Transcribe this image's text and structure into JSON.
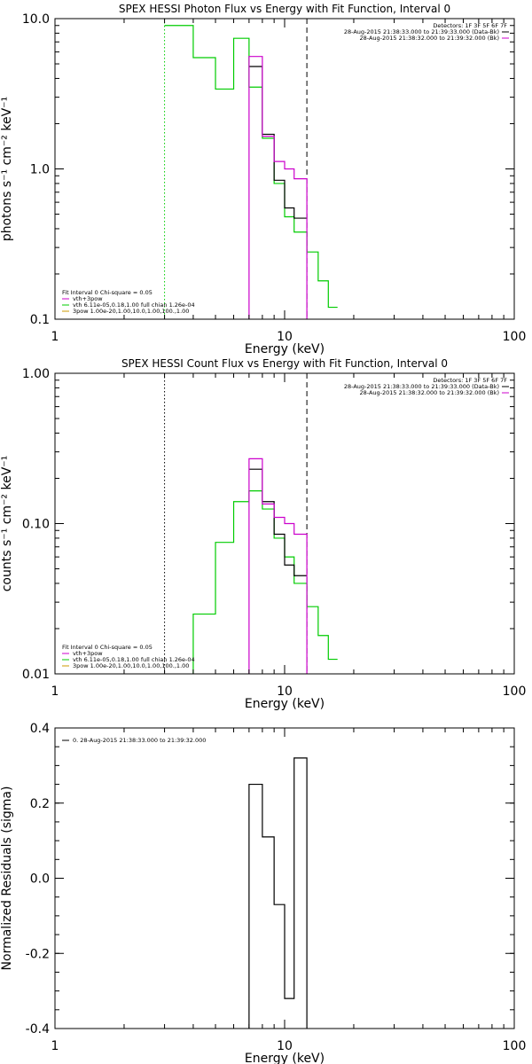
{
  "chart_data": [
    {
      "type": "line",
      "title": "SPEX HESSI Photon Flux vs Energy with Fit Function, Interval 0",
      "xlabel": "Energy (keV)",
      "ylabel": "photons s⁻¹ cm⁻² keV⁻¹",
      "xscale": "log",
      "yscale": "log",
      "xlim": [
        1,
        100
      ],
      "ylim": [
        0.1,
        10
      ],
      "xticks": [
        {
          "v": 1,
          "label": "1"
        },
        {
          "v": 10,
          "label": "10"
        },
        {
          "v": 100,
          "label": "100"
        }
      ],
      "yticks": [
        {
          "v": 0.1,
          "label": "0.1"
        },
        {
          "v": 1,
          "label": "1.0"
        },
        {
          "v": 10,
          "label": "10.0"
        }
      ],
      "header": [
        {
          "text": "Detectors: 1F 3F 5F 6F 7F",
          "color": "#000000"
        },
        {
          "text": "28-Aug-2015 21:38:33.000 to 21:39:33.000 (Data-Bk)",
          "color": "#000000"
        },
        {
          "text": "28-Aug-2015 21:38:32.000 to 21:39:32.000 (Bk)",
          "color": "#cc00cc"
        }
      ],
      "legend": [
        {
          "text": "Fit Interval 0   Chi-square = 0.05",
          "color": "#000000",
          "line": false
        },
        {
          "text": "vth+3pow",
          "color": "#cc00cc",
          "line": true
        },
        {
          "text": "vth 6.11e-05,0.18,1.00  full chian 1.26e-04",
          "color": "#00cc00",
          "line": true
        },
        {
          "text": "3pow 1.00e-20,1.00,10.0,1.00,100.,1.00",
          "color": "#cc9900",
          "line": true
        }
      ],
      "vlines": [
        {
          "x": 3.0,
          "style": "dotted",
          "color": "#00cc00"
        },
        {
          "x": 12.5,
          "style": "dashed",
          "color": "#000000"
        }
      ],
      "series": [
        {
          "color": "#00cc00",
          "edges": [
            3.0,
            4.0,
            5.0,
            6.0,
            7.0,
            8.0,
            9.0,
            10.0,
            11.0,
            12.5,
            14.0,
            15.5,
            17.0
          ],
          "values": [
            9.0,
            5.5,
            3.4,
            7.4,
            3.5,
            1.6,
            0.8,
            0.48,
            0.38,
            0.28,
            0.18,
            0.12
          ]
        },
        {
          "color": "#000000",
          "edges": [
            7.0,
            8.0,
            9.0,
            10.0,
            11.0,
            12.5
          ],
          "values": [
            4.8,
            1.7,
            0.84,
            0.55,
            0.47
          ]
        },
        {
          "color": "#cc00cc",
          "edges": [
            7.0,
            8.0,
            9.0,
            10.0,
            11.0,
            12.5
          ],
          "values": [
            5.6,
            1.65,
            1.12,
            1.0,
            0.86
          ],
          "drop_left": true,
          "drop_right": true
        }
      ]
    },
    {
      "type": "line",
      "title": "SPEX HESSI Count Flux vs Energy with Fit Function, Interval 0",
      "xlabel": "Energy (keV)",
      "ylabel": "counts s⁻¹ cm⁻² keV⁻¹",
      "xscale": "log",
      "yscale": "log",
      "xlim": [
        1,
        100
      ],
      "ylim": [
        0.01,
        1
      ],
      "xticks": [
        {
          "v": 1,
          "label": "1"
        },
        {
          "v": 10,
          "label": "10"
        },
        {
          "v": 100,
          "label": "100"
        }
      ],
      "yticks": [
        {
          "v": 0.01,
          "label": "0.01"
        },
        {
          "v": 0.1,
          "label": "0.10"
        },
        {
          "v": 1,
          "label": "1.00"
        }
      ],
      "header": [
        {
          "text": "Detectors: 1F 3F 5F 6F 7F",
          "color": "#000000"
        },
        {
          "text": "28-Aug-2015 21:38:33.000 to 21:39:33.000 (Data-Bk)",
          "color": "#000000"
        },
        {
          "text": "28-Aug-2015 21:38:32.000 to 21:39:32.000 (Bk)",
          "color": "#cc00cc"
        }
      ],
      "legend": [
        {
          "text": "Fit Interval 0   Chi-square = 0.05",
          "color": "#000000",
          "line": false
        },
        {
          "text": "vth+3pow",
          "color": "#cc00cc",
          "line": true
        },
        {
          "text": "vth 6.11e-05,0.18,1.00  full chian 1.26e-04",
          "color": "#00cc00",
          "line": true
        },
        {
          "text": "3pow 1.00e-20,1.00,10.0,1.00,100.,1.00",
          "color": "#cc9900",
          "line": true
        }
      ],
      "vlines": [
        {
          "x": 3.0,
          "style": "dotted",
          "color": "#000000"
        },
        {
          "x": 12.5,
          "style": "dashed",
          "color": "#000000"
        }
      ],
      "series": [
        {
          "color": "#00cc00",
          "edges": [
            4.0,
            5.0,
            6.0,
            7.0,
            8.0,
            9.0,
            10.0,
            11.0,
            12.5,
            14.0,
            15.5,
            17.0
          ],
          "values": [
            0.025,
            0.075,
            0.14,
            0.165,
            0.125,
            0.08,
            0.06,
            0.04,
            0.028,
            0.018,
            0.0125
          ],
          "drop_left": true
        },
        {
          "color": "#000000",
          "edges": [
            7.0,
            8.0,
            9.0,
            10.0,
            11.0,
            12.5
          ],
          "values": [
            0.23,
            0.14,
            0.085,
            0.053,
            0.045
          ]
        },
        {
          "color": "#cc00cc",
          "edges": [
            7.0,
            8.0,
            9.0,
            10.0,
            11.0,
            12.5
          ],
          "values": [
            0.27,
            0.135,
            0.11,
            0.1,
            0.085
          ],
          "drop_left": true,
          "drop_right": true
        }
      ]
    },
    {
      "type": "line",
      "title": "",
      "xlabel": "Energy (keV)",
      "ylabel": "Normalized Residuals (sigma)",
      "xscale": "log",
      "yscale": "linear",
      "xlim": [
        1,
        100
      ],
      "ylim": [
        -0.4,
        0.4
      ],
      "xticks": [
        {
          "v": 1,
          "label": "1"
        },
        {
          "v": 10,
          "label": "10"
        },
        {
          "v": 100,
          "label": "100"
        }
      ],
      "yticks": [
        {
          "v": -0.4,
          "label": "-0.4"
        },
        {
          "v": -0.2,
          "label": "-0.2"
        },
        {
          "v": 0.0,
          "label": "0.0"
        },
        {
          "v": 0.2,
          "label": "0.2"
        },
        {
          "v": 0.4,
          "label": "0.4"
        }
      ],
      "header": [],
      "legend": [
        {
          "text": "0. 28-Aug-2015 21:38:33.000 to 21:39:32.000",
          "color": "#000000",
          "line": true
        }
      ],
      "vlines": [],
      "series": [
        {
          "color": "#000000",
          "edges": [
            7.0,
            8.0,
            9.0,
            10.0,
            11.0,
            12.5
          ],
          "values": [
            0.25,
            0.11,
            -0.07,
            -0.32,
            0.32
          ],
          "drop_left": true,
          "drop_right": true
        }
      ]
    }
  ]
}
